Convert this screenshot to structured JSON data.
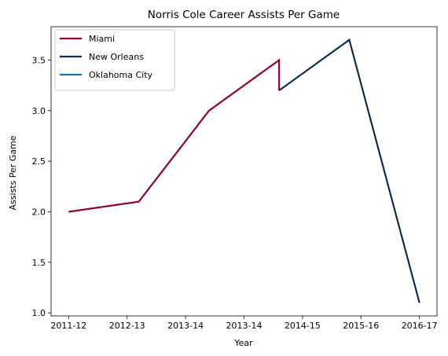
{
  "chart_data": {
    "type": "line",
    "title": "Norris Cole Career Assists Per Game",
    "xlabel": "Year",
    "ylabel": "Assists Per Game",
    "x_tick_labels": [
      "2011-12",
      "2012-13",
      "2013-14",
      "2013-14",
      "2014-15",
      "2015-16",
      "2016-17"
    ],
    "y_ticks": [
      1.0,
      1.5,
      2.0,
      2.5,
      3.0,
      3.5
    ],
    "y_tick_labels": [
      "1.0",
      "1.5",
      "2.0",
      "2.5",
      "3.0",
      "3.5"
    ],
    "ylim": [
      0.97,
      3.83
    ],
    "xlim": [
      -0.25,
      5.25
    ],
    "grid": false,
    "legend_position": "top-left",
    "series": [
      {
        "name": "Miami",
        "color": "#8B0036",
        "points": [
          {
            "x": 0.0,
            "y": 2.0
          },
          {
            "x": 1.0,
            "y": 2.1
          },
          {
            "x": 2.0,
            "y": 3.0
          },
          {
            "x": 3.0,
            "y": 3.5
          },
          {
            "x": 3.0,
            "y": 3.2
          }
        ]
      },
      {
        "name": "New Orleans",
        "color": "#0C2C56",
        "points": [
          {
            "x": 3.0,
            "y": 3.2
          },
          {
            "x": 4.0,
            "y": 3.7
          },
          {
            "x": 5.0,
            "y": 1.1
          }
        ]
      },
      {
        "name": "Oklahoma City",
        "color": "#007AC1",
        "points": []
      }
    ]
  }
}
